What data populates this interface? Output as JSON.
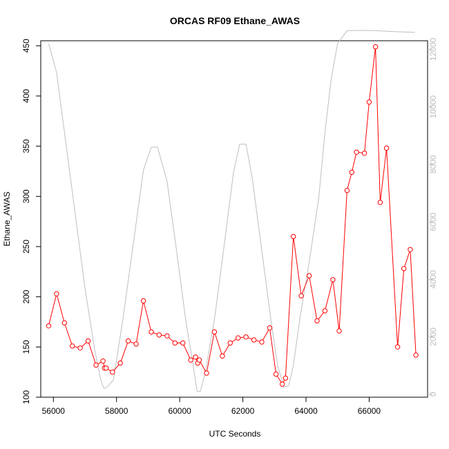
{
  "chart_data": {
    "type": "line",
    "title": "ORCAS RF09 Ethane_AWAS",
    "xlabel": "UTC Seconds",
    "ylabel": "Ethane_AWAS",
    "xlim": [
      55600,
      67850
    ],
    "ylim": [
      100,
      455
    ],
    "y2lim": [
      -100,
      12300
    ],
    "x_ticks": [
      56000,
      58000,
      60000,
      62000,
      64000,
      66000
    ],
    "y_ticks": [
      100,
      150,
      200,
      250,
      300,
      350,
      400,
      450
    ],
    "y2_ticks": [
      0,
      2000,
      4000,
      6000,
      8000,
      10000,
      12000
    ],
    "colors": {
      "ethane": "#ff0000",
      "altitude": "#bebebe"
    },
    "series": [
      {
        "axis": "left",
        "style": "line+open-circles",
        "color": "#ff0000",
        "x": [
          55850,
          56100,
          56350,
          56600,
          56850,
          57100,
          57350,
          57570,
          57620,
          57670,
          57870,
          58120,
          58370,
          58620,
          58850,
          59100,
          59350,
          59600,
          59850,
          60100,
          60350,
          60500,
          60570,
          60620,
          60850,
          61100,
          61350,
          61600,
          61850,
          62100,
          62350,
          62600,
          62850,
          63050,
          63250,
          63350,
          63600,
          63850,
          64100,
          64350,
          64600,
          64850,
          65050,
          65300,
          65450,
          65600,
          65850,
          66000,
          66200,
          66350,
          66550,
          66900,
          67100,
          67300,
          67480
        ],
        "y": [
          171,
          203,
          174,
          151,
          149,
          156,
          132,
          136,
          129,
          129,
          125,
          134,
          156,
          153,
          196,
          165,
          162,
          161,
          154,
          154,
          137,
          140,
          134,
          137,
          124,
          165,
          141,
          154,
          159,
          160,
          157,
          155,
          169,
          123,
          113,
          119,
          260,
          201,
          221,
          176,
          186,
          217,
          166,
          306,
          324,
          344,
          343,
          394,
          449,
          294,
          348,
          150,
          228,
          247,
          142
        ]
      },
      {
        "axis": "right",
        "style": "line",
        "color": "#bebebe",
        "x": [
          55850,
          56100,
          56400,
          56700,
          57000,
          57300,
          57500,
          57600,
          57700,
          57900,
          58200,
          58500,
          58850,
          59100,
          59300,
          59600,
          59900,
          60200,
          60400,
          60550,
          60650,
          60800,
          61100,
          61400,
          61700,
          61900,
          62100,
          62300,
          62600,
          62900,
          63100,
          63300,
          63450,
          63600,
          63800,
          64100,
          64400,
          64600,
          64800,
          65000,
          65300,
          65800,
          66200,
          66800,
          67450
        ],
        "y": [
          12200,
          11200,
          8700,
          6200,
          3700,
          1600,
          500,
          200,
          250,
          500,
          2600,
          5000,
          7800,
          8600,
          8600,
          7400,
          5000,
          2500,
          1200,
          100,
          100,
          700,
          2600,
          5100,
          7700,
          8700,
          8700,
          7500,
          5000,
          2500,
          1000,
          250,
          300,
          1000,
          2600,
          4600,
          6800,
          9100,
          11000,
          12200,
          12650,
          12660,
          12650,
          12620,
          12590
        ]
      }
    ]
  }
}
